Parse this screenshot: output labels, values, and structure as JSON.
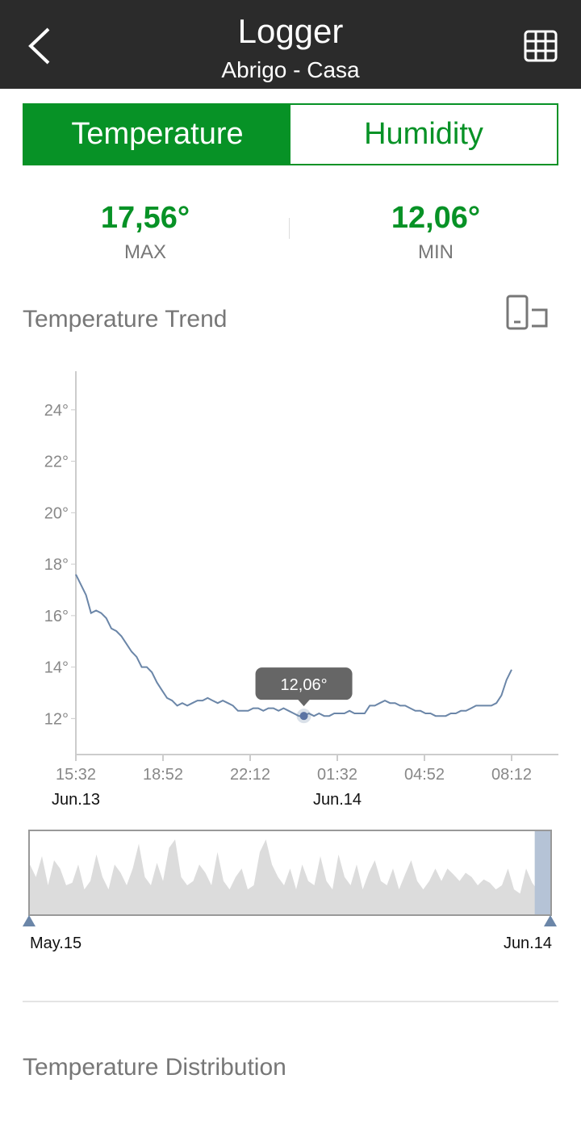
{
  "header": {
    "title": "Logger",
    "subtitle": "Abrigo - Casa",
    "back_icon": "chevron-left-icon",
    "table_icon": "table-grid-icon"
  },
  "tabs": [
    {
      "label": "Temperature",
      "active": true
    },
    {
      "label": "Humidity",
      "active": false
    }
  ],
  "stats": {
    "max_value": "17,56°",
    "max_label": "MAX",
    "min_value": "12,06°",
    "min_label": "MIN"
  },
  "trend": {
    "title": "Temperature Trend",
    "rotate_icon": "rotate-screen-icon"
  },
  "colors": {
    "accent": "#079226",
    "header": "#2b2b2b",
    "line": "#6b86a8",
    "navigator_fill": "#dcdcdc"
  },
  "chart_data": {
    "type": "line",
    "y_ticks": [
      "24°",
      "22°",
      "20°",
      "18°",
      "16°",
      "14°",
      "12°"
    ],
    "y_tick_values": [
      24,
      22,
      20,
      18,
      16,
      14,
      12
    ],
    "ylim": [
      10.6,
      25.5
    ],
    "x_ticks": [
      "15:32",
      "18:52",
      "22:12",
      "01:32",
      "04:52",
      "08:12"
    ],
    "date_labels": [
      {
        "text": "Jun.13",
        "under": "15:32"
      },
      {
        "text": "Jun.14",
        "under": "01:32"
      }
    ],
    "series": [
      {
        "values": [
          17.6,
          17.2,
          16.8,
          16.1,
          16.2,
          16.1,
          15.9,
          15.5,
          15.4,
          15.2,
          14.9,
          14.6,
          14.4,
          14.0,
          14.0,
          13.8,
          13.4,
          13.1,
          12.8,
          12.7,
          12.5,
          12.6,
          12.5,
          12.6,
          12.7,
          12.7,
          12.8,
          12.7,
          12.6,
          12.7,
          12.6,
          12.5,
          12.3,
          12.3,
          12.3,
          12.4,
          12.4,
          12.3,
          12.4,
          12.4,
          12.3,
          12.4,
          12.3,
          12.2,
          12.1,
          12.1,
          12.2,
          12.1,
          12.2,
          12.1,
          12.1,
          12.2,
          12.2,
          12.2,
          12.3,
          12.2,
          12.2,
          12.2,
          12.5,
          12.5,
          12.6,
          12.7,
          12.6,
          12.6,
          12.5,
          12.5,
          12.4,
          12.3,
          12.3,
          12.2,
          12.2,
          12.1,
          12.1,
          12.1,
          12.2,
          12.2,
          12.3,
          12.3,
          12.4,
          12.5,
          12.5,
          12.5,
          12.5,
          12.6,
          12.9,
          13.5,
          13.9
        ]
      }
    ],
    "tooltip": {
      "text": "12,06°",
      "index": 45
    }
  },
  "navigator": {
    "start_label": "May.15",
    "end_label": "Jun.14",
    "values": [
      0.6,
      0.45,
      0.7,
      0.35,
      0.65,
      0.55,
      0.35,
      0.38,
      0.6,
      0.3,
      0.4,
      0.72,
      0.45,
      0.3,
      0.6,
      0.5,
      0.35,
      0.55,
      0.85,
      0.45,
      0.35,
      0.62,
      0.4,
      0.8,
      0.9,
      0.45,
      0.35,
      0.4,
      0.6,
      0.5,
      0.35,
      0.75,
      0.4,
      0.3,
      0.45,
      0.55,
      0.3,
      0.35,
      0.75,
      0.9,
      0.6,
      0.45,
      0.35,
      0.55,
      0.3,
      0.6,
      0.4,
      0.35,
      0.7,
      0.4,
      0.3,
      0.72,
      0.45,
      0.35,
      0.6,
      0.3,
      0.5,
      0.65,
      0.4,
      0.35,
      0.55,
      0.3,
      0.48,
      0.65,
      0.4,
      0.3,
      0.4,
      0.55,
      0.4,
      0.55,
      0.48,
      0.4,
      0.5,
      0.45,
      0.35,
      0.42,
      0.38,
      0.3,
      0.35,
      0.55,
      0.3,
      0.25,
      0.55,
      0.38,
      0.28,
      0.45,
      0.3
    ],
    "selected_from": 0.97
  },
  "distribution": {
    "title": "Temperature Distribution"
  }
}
